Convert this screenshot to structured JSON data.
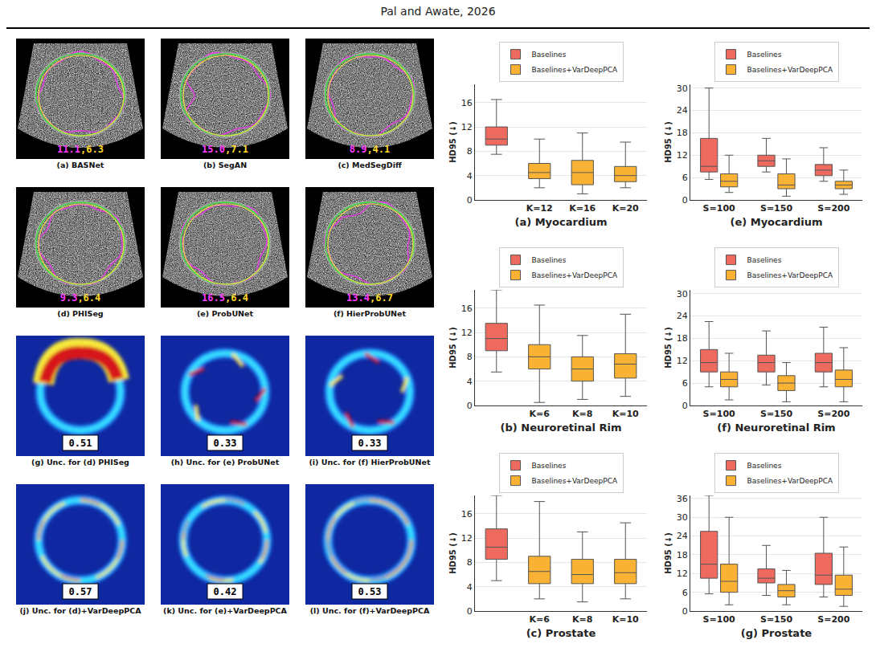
{
  "header": {
    "text": "Pal and Awate, 2026"
  },
  "segmentation_panels": {
    "score_separator": ",",
    "panels": [
      {
        "caption": "(a) BASNet",
        "scores": [
          "11.1",
          "6.3"
        ]
      },
      {
        "caption": "(b) SegAN",
        "scores": [
          "15.0",
          "7.1"
        ]
      },
      {
        "caption": "(c) MedSegDiff",
        "scores": [
          "8.9",
          "4.1"
        ]
      },
      {
        "caption": "(d) PHISeg",
        "scores": [
          "9.3",
          "6.4"
        ]
      },
      {
        "caption": "(e) ProbUNet",
        "scores": [
          "16.5",
          "6.4"
        ]
      },
      {
        "caption": "(f) HierProbUNet",
        "scores": [
          "13.4",
          "6.7"
        ]
      }
    ]
  },
  "uncertainty_panels": [
    {
      "caption": "(g) Unc. for (d) PHISeg",
      "value": "0.51"
    },
    {
      "caption": "(h) Unc. for (e) ProbUNet",
      "value": "0.33"
    },
    {
      "caption": "(i) Unc. for (f) HierProbUNet",
      "value": "0.33"
    },
    {
      "caption": "(j) Unc. for (d)+VarDeepPCA",
      "value": "0.57"
    },
    {
      "caption": "(k) Unc. for (e)+VarDeepPCA",
      "value": "0.42"
    },
    {
      "caption": "(l) Unc. for (f)+VarDeepPCA",
      "value": "0.53"
    }
  ],
  "chart_data": [
    {
      "type": "box",
      "title": "(a) Myocardium",
      "y_label": "HD95 (↓)",
      "categories": [
        null,
        "K=12",
        "K=16",
        "K=20"
      ],
      "ylim": [
        0,
        19
      ],
      "yticks": [
        0,
        4,
        8,
        12,
        16
      ],
      "grid": true,
      "legend": "top",
      "series": [
        {
          "name": "Baselines",
          "color": "#ee6a5e",
          "boxes": [
            {
              "lower": 7.5,
              "q1": 9,
              "median": 10,
              "q3": 12,
              "upper": 16.5
            },
            null,
            null,
            null
          ]
        },
        {
          "name": "Baselines+VarDeepPCA",
          "color": "#f9b233",
          "boxes": [
            null,
            {
              "lower": 2,
              "q1": 3.5,
              "median": 4.5,
              "q3": 6,
              "upper": 10
            },
            {
              "lower": 1,
              "q1": 2.5,
              "median": 4.5,
              "q3": 6.5,
              "upper": 11
            },
            {
              "lower": 2,
              "q1": 3,
              "median": 4,
              "q3": 5.5,
              "upper": 9.5
            }
          ]
        }
      ]
    },
    {
      "type": "box",
      "title": "(b) Neuroretinal Rim",
      "y_label": "HD95 (↓)",
      "categories": [
        null,
        "K=6",
        "K=8",
        "K=10"
      ],
      "ylim": [
        0,
        19
      ],
      "yticks": [
        0,
        4,
        8,
        12,
        16
      ],
      "grid": true,
      "legend": "top",
      "series": [
        {
          "name": "Baselines",
          "color": "#ee6a5e",
          "boxes": [
            {
              "lower": 5.5,
              "q1": 9,
              "median": 11,
              "q3": 13.5,
              "upper": 19
            },
            null,
            null,
            null
          ]
        },
        {
          "name": "Baselines+VarDeepPCA",
          "color": "#f9b233",
          "boxes": [
            null,
            {
              "lower": 0.5,
              "q1": 6,
              "median": 8,
              "q3": 10,
              "upper": 16.5
            },
            {
              "lower": 1,
              "q1": 4,
              "median": 6,
              "q3": 8,
              "upper": 11.5
            },
            {
              "lower": 1.5,
              "q1": 4.5,
              "median": 6.8,
              "q3": 8.5,
              "upper": 15
            }
          ]
        }
      ]
    },
    {
      "type": "box",
      "title": "(c) Prostate",
      "y_label": "HD95 (↓)",
      "categories": [
        null,
        "K=6",
        "K=8",
        "K=10"
      ],
      "ylim": [
        0,
        19
      ],
      "yticks": [
        0,
        4,
        8,
        12,
        16
      ],
      "grid": true,
      "legend": "top",
      "series": [
        {
          "name": "Baselines",
          "color": "#ee6a5e",
          "boxes": [
            {
              "lower": 5,
              "q1": 8.5,
              "median": 10.5,
              "q3": 13.5,
              "upper": 19
            },
            null,
            null,
            null
          ]
        },
        {
          "name": "Baselines+VarDeepPCA",
          "color": "#f9b233",
          "boxes": [
            null,
            {
              "lower": 2,
              "q1": 4.5,
              "median": 6.5,
              "q3": 9,
              "upper": 18
            },
            {
              "lower": 1.5,
              "q1": 4.5,
              "median": 6,
              "q3": 8.5,
              "upper": 13
            },
            {
              "lower": 2,
              "q1": 4.5,
              "median": 6.3,
              "q3": 8.5,
              "upper": 14.5
            }
          ]
        }
      ]
    },
    {
      "type": "box",
      "title": "(e) Myocardium",
      "y_label": "HD95 (↓)",
      "categories": [
        "S=100",
        "S=150",
        "S=200"
      ],
      "ylim": [
        0,
        31
      ],
      "yticks": [
        0,
        6,
        12,
        18,
        24,
        30
      ],
      "grid": true,
      "legend": "top",
      "series": [
        {
          "name": "Baselines",
          "color": "#ee6a5e",
          "boxes": [
            {
              "lower": 5.5,
              "q1": 7.5,
              "median": 9,
              "q3": 16.5,
              "upper": 30
            },
            {
              "lower": 7.5,
              "q1": 9,
              "median": 10.5,
              "q3": 12,
              "upper": 16.5
            },
            {
              "lower": 5,
              "q1": 6.5,
              "median": 8,
              "q3": 9.5,
              "upper": 14
            }
          ]
        },
        {
          "name": "Baselines+VarDeepPCA",
          "color": "#f9b233",
          "boxes": [
            {
              "lower": 2,
              "q1": 3.5,
              "median": 5,
              "q3": 7,
              "upper": 12
            },
            {
              "lower": 1,
              "q1": 3,
              "median": 4,
              "q3": 7,
              "upper": 11
            },
            {
              "lower": 1.5,
              "q1": 3,
              "median": 4,
              "q3": 5,
              "upper": 8
            }
          ]
        }
      ]
    },
    {
      "type": "box",
      "title": "(f) Neuroretinal Rim",
      "y_label": "HD95 (↓)",
      "categories": [
        "S=100",
        "S=150",
        "S=200"
      ],
      "ylim": [
        0,
        31
      ],
      "yticks": [
        0,
        6,
        12,
        18,
        24,
        30
      ],
      "grid": true,
      "legend": "top",
      "series": [
        {
          "name": "Baselines",
          "color": "#ee6a5e",
          "boxes": [
            {
              "lower": 5,
              "q1": 9,
              "median": 11.5,
              "q3": 15,
              "upper": 22.5
            },
            {
              "lower": 5.5,
              "q1": 9,
              "median": 11.5,
              "q3": 13.5,
              "upper": 20
            },
            {
              "lower": 5,
              "q1": 9,
              "median": 11.5,
              "q3": 14,
              "upper": 21
            }
          ]
        },
        {
          "name": "Baselines+VarDeepPCA",
          "color": "#f9b233",
          "boxes": [
            {
              "lower": 1.5,
              "q1": 5,
              "median": 7,
              "q3": 9,
              "upper": 14
            },
            {
              "lower": 1,
              "q1": 4,
              "median": 6,
              "q3": 8,
              "upper": 11.5
            },
            {
              "lower": 1,
              "q1": 5,
              "median": 7,
              "q3": 9.5,
              "upper": 15.5
            }
          ]
        }
      ]
    },
    {
      "type": "box",
      "title": "(g) Prostate",
      "y_label": "HD95 (↓)",
      "categories": [
        "S=100",
        "S=150",
        "S=200"
      ],
      "ylim": [
        0,
        37
      ],
      "yticks": [
        0,
        6,
        12,
        18,
        24,
        30,
        36
      ],
      "grid": true,
      "legend": "top",
      "series": [
        {
          "name": "Baselines",
          "color": "#ee6a5e",
          "boxes": [
            {
              "lower": 5.5,
              "q1": 10.5,
              "median": 15,
              "q3": 25.5,
              "upper": 37
            },
            {
              "lower": 5,
              "q1": 9,
              "median": 10.5,
              "q3": 13.5,
              "upper": 21
            },
            {
              "lower": 4.5,
              "q1": 8.5,
              "median": 11.5,
              "q3": 18.5,
              "upper": 30
            }
          ]
        },
        {
          "name": "Baselines+VarDeepPCA",
          "color": "#f9b233",
          "boxes": [
            {
              "lower": 2,
              "q1": 6,
              "median": 9.5,
              "q3": 15,
              "upper": 30
            },
            {
              "lower": 2,
              "q1": 4.5,
              "median": 6.5,
              "q3": 8.5,
              "upper": 13
            },
            {
              "lower": 1.5,
              "q1": 5,
              "median": 7,
              "q3": 11.5,
              "upper": 20.5
            }
          ]
        }
      ]
    }
  ]
}
